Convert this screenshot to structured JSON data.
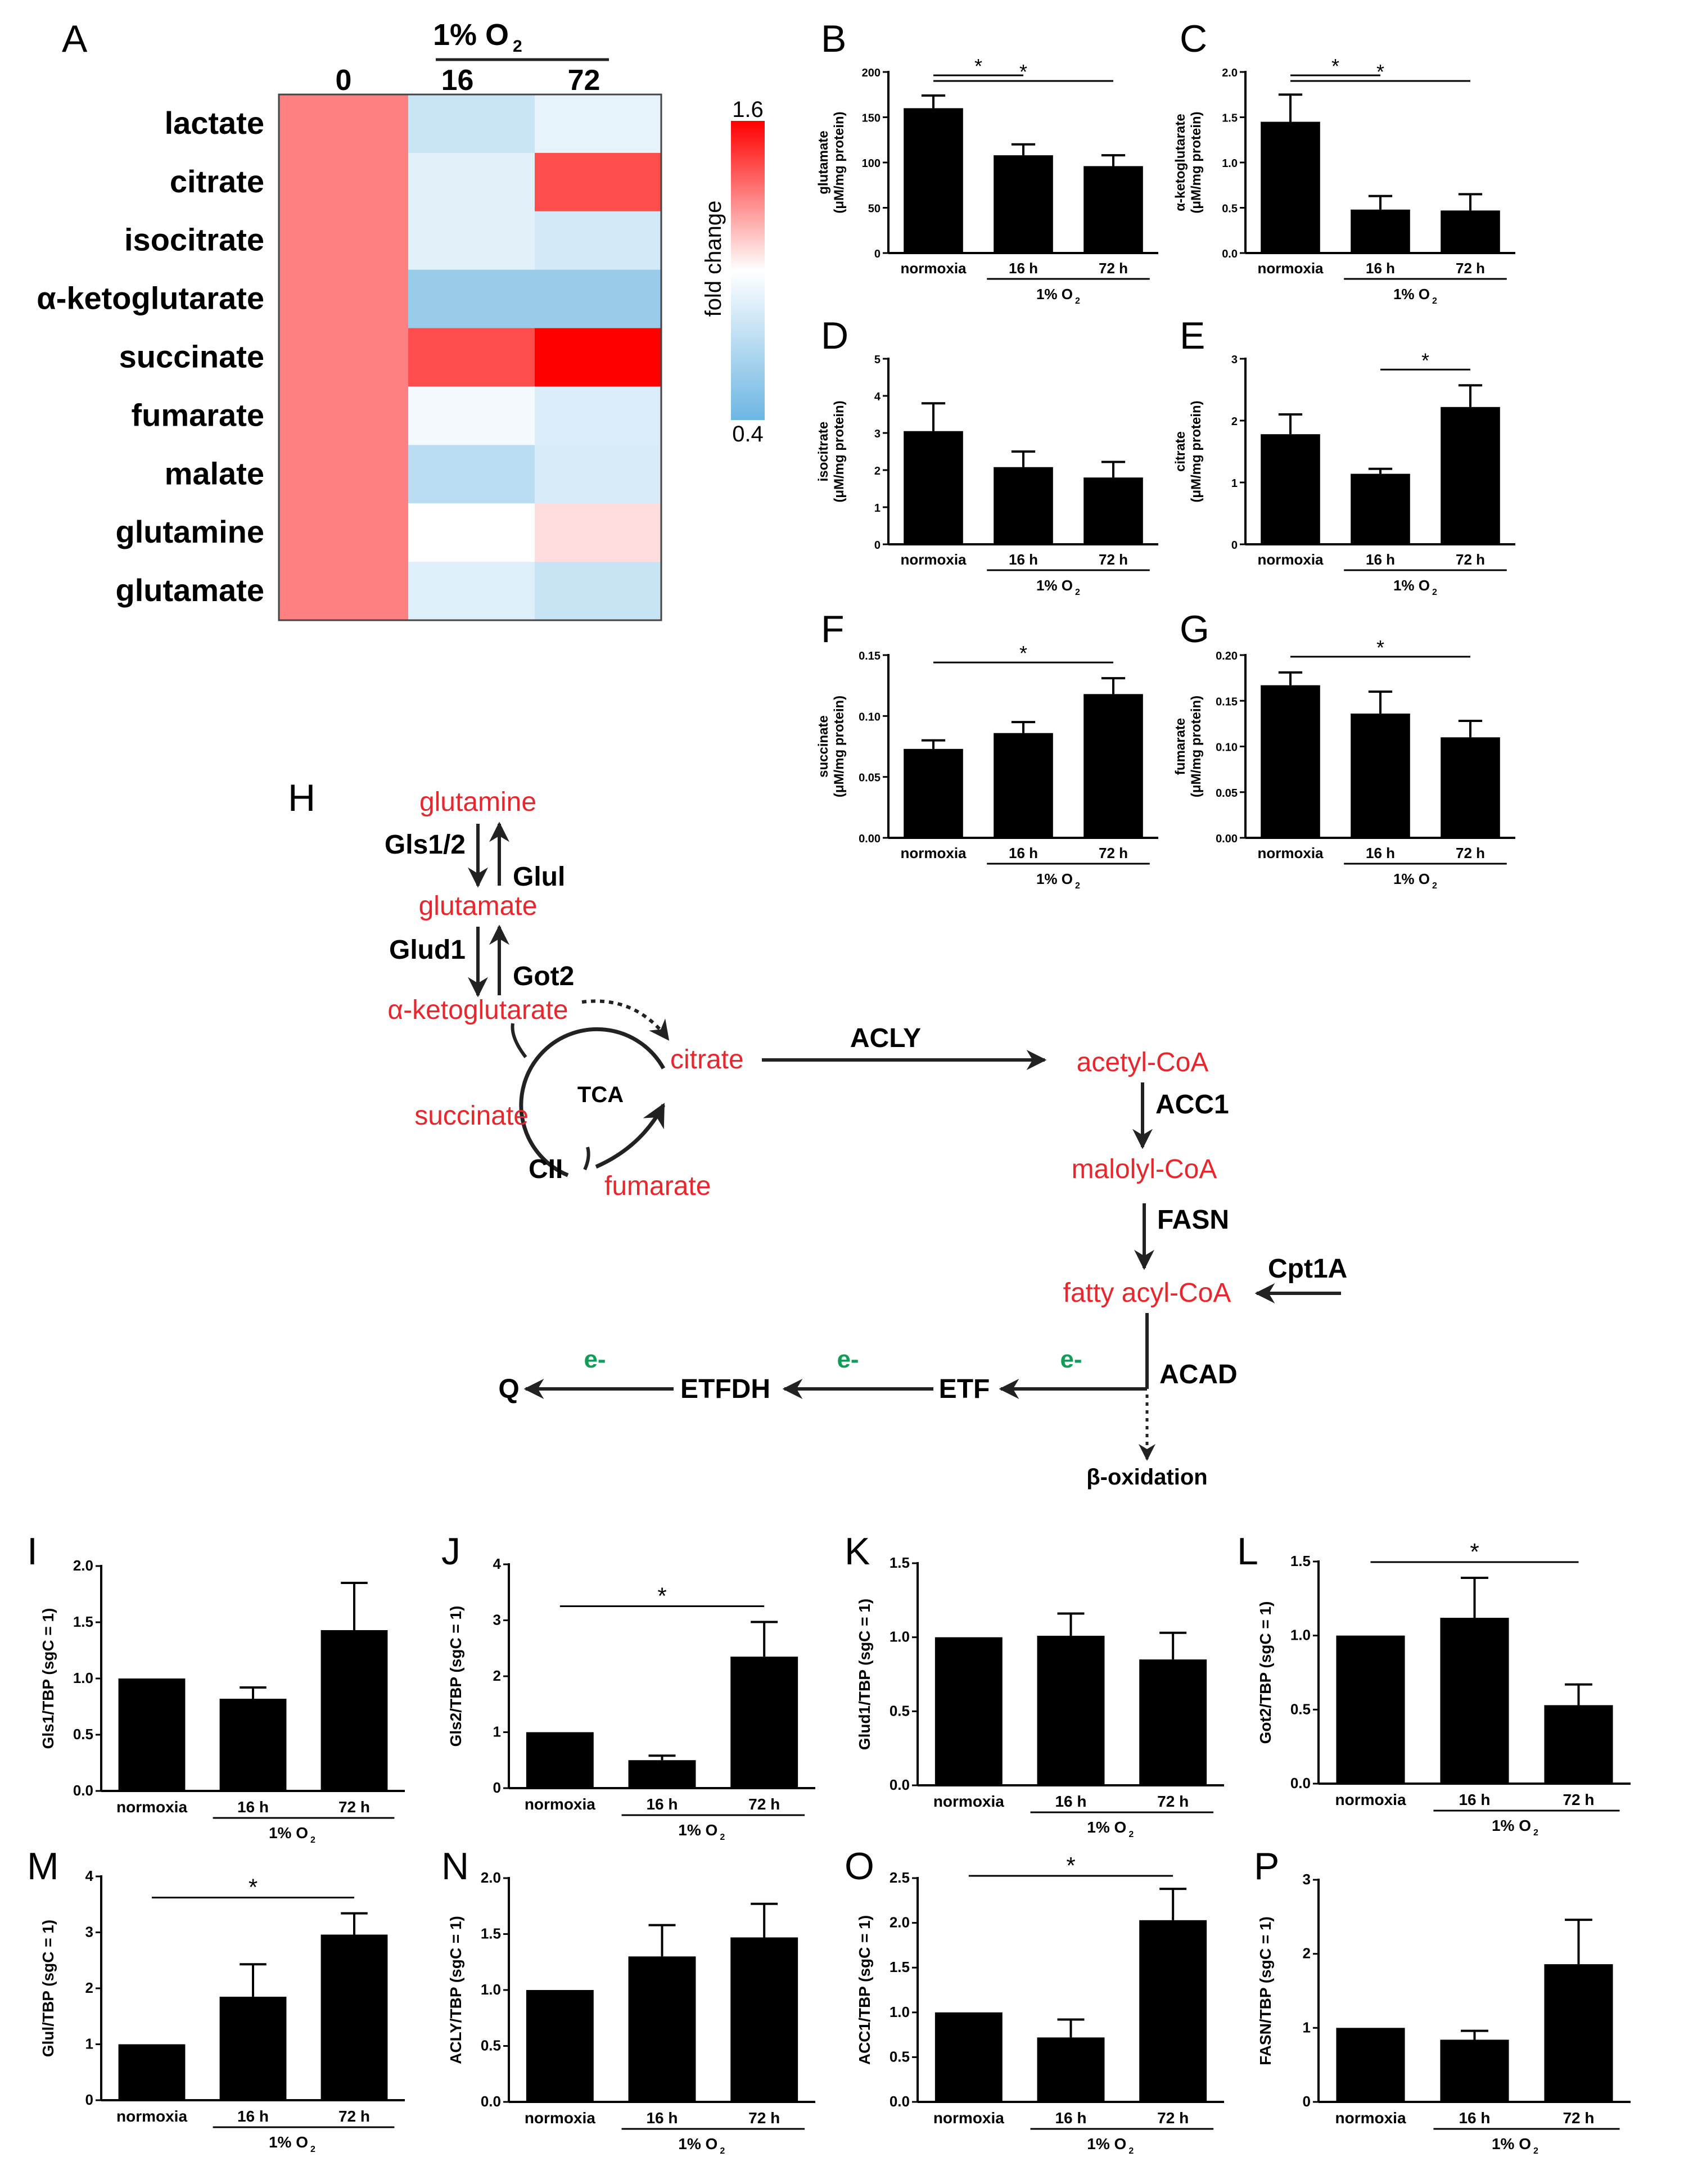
{
  "colors": {
    "bar": "#000000",
    "metabolite": "#e8262b",
    "electron": "#0f9d58",
    "heat_low": "#6db6e3",
    "heat_mid": "#ffffff",
    "heat_high": "#ff0000"
  },
  "panel_letters": {
    "A": "A",
    "B": "B",
    "C": "C",
    "D": "D",
    "E": "E",
    "F": "F",
    "G": "G",
    "H": "H",
    "I": "I",
    "J": "J",
    "K": "K",
    "L": "L",
    "M": "M",
    "N": "N",
    "O": "O",
    "P": "P"
  },
  "chart_data": [
    {
      "type": "heatmap",
      "panel": "A",
      "header_group": "1% O",
      "header_group_sub": "2",
      "columns": [
        "0",
        "16",
        "72"
      ],
      "rows": [
        "lactate",
        "citrate",
        "isocitrate",
        "α-ketoglutarate",
        "succinate",
        "fumarate",
        "malate",
        "glutamine",
        "glutamate"
      ],
      "values": [
        [
          1.3,
          0.78,
          0.9
        ],
        [
          1.3,
          0.88,
          1.42
        ],
        [
          1.3,
          0.88,
          0.82
        ],
        [
          1.3,
          0.58,
          0.58
        ],
        [
          1.3,
          1.42,
          1.6
        ],
        [
          1.3,
          0.95,
          0.85
        ],
        [
          1.3,
          0.72,
          0.84
        ],
        [
          1.3,
          1.0,
          1.08
        ],
        [
          1.3,
          0.87,
          0.77
        ]
      ],
      "colorbar_label": "fold change",
      "colorbar_max": "1.6",
      "colorbar_min": "0.4",
      "range": [
        0.4,
        1.6
      ]
    },
    {
      "type": "bar",
      "panel": "B",
      "categories": [
        "normoxia",
        "16 h",
        "72 h"
      ],
      "values": [
        160,
        108,
        96
      ],
      "errors": [
        14,
        12,
        12
      ],
      "ylabel": "glutamate",
      "ylabel2": "(μM/mg protein)",
      "ylim": [
        0,
        200
      ],
      "yticks": [
        "0",
        "50",
        "100",
        "150",
        "200"
      ],
      "group_label": "1% O",
      "group_label_sub": "2",
      "significance": [
        {
          "from": 0,
          "to": 1,
          "label": "*"
        },
        {
          "from": 0,
          "to": 2,
          "label": "*"
        }
      ]
    },
    {
      "type": "bar",
      "panel": "C",
      "categories": [
        "normoxia",
        "16 h",
        "72 h"
      ],
      "values": [
        1.45,
        0.48,
        0.47
      ],
      "errors": [
        0.3,
        0.15,
        0.18
      ],
      "ylabel": "α-ketoglutarate",
      "ylabel2": "(μM/mg protein)",
      "ylim": [
        0,
        2.0
      ],
      "yticks": [
        "0.0",
        "0.5",
        "1.0",
        "1.5",
        "2.0"
      ],
      "group_label": "1% O",
      "group_label_sub": "2",
      "significance": [
        {
          "from": 0,
          "to": 1,
          "label": "*"
        },
        {
          "from": 0,
          "to": 2,
          "label": "*"
        }
      ]
    },
    {
      "type": "bar",
      "panel": "D",
      "categories": [
        "normoxia",
        "16 h",
        "72 h"
      ],
      "values": [
        3.05,
        2.08,
        1.8
      ],
      "errors": [
        0.75,
        0.42,
        0.42
      ],
      "ylabel": "isocitrate",
      "ylabel2": "(μM/mg protein)",
      "ylim": [
        0,
        5
      ],
      "yticks": [
        "0",
        "1",
        "2",
        "3",
        "4",
        "5"
      ],
      "group_label": "1% O",
      "group_label_sub": "2",
      "significance": []
    },
    {
      "type": "bar",
      "panel": "E",
      "categories": [
        "normoxia",
        "16 h",
        "72 h"
      ],
      "values": [
        1.78,
        1.14,
        2.22
      ],
      "errors": [
        0.32,
        0.08,
        0.35
      ],
      "ylabel": "citrate",
      "ylabel2": "(μM/mg protein)",
      "ylim": [
        0,
        3
      ],
      "yticks": [
        "0",
        "1",
        "2",
        "3"
      ],
      "group_label": "1% O",
      "group_label_sub": "2",
      "significance": [
        {
          "from": 1,
          "to": 2,
          "label": "*"
        }
      ]
    },
    {
      "type": "bar",
      "panel": "F",
      "categories": [
        "normoxia",
        "16 h",
        "72 h"
      ],
      "values": [
        0.073,
        0.086,
        0.118
      ],
      "errors": [
        0.007,
        0.009,
        0.013
      ],
      "ylabel": "succinate",
      "ylabel2": "(μM/mg protein)",
      "ylim": [
        0,
        0.15
      ],
      "yticks": [
        "0.00",
        "0.05",
        "0.10",
        "0.15"
      ],
      "group_label": "1% O",
      "group_label_sub": "2",
      "significance": [
        {
          "from": 0,
          "to": 2,
          "label": "*"
        }
      ]
    },
    {
      "type": "bar",
      "panel": "G",
      "categories": [
        "normoxia",
        "16 h",
        "72 h"
      ],
      "values": [
        0.167,
        0.136,
        0.11
      ],
      "errors": [
        0.014,
        0.024,
        0.018
      ],
      "ylabel": "fumarate",
      "ylabel2": "(μM/mg protein)",
      "ylim": [
        0,
        0.2
      ],
      "yticks": [
        "0.00",
        "0.05",
        "0.10",
        "0.15",
        "0.20"
      ],
      "group_label": "1% O",
      "group_label_sub": "2",
      "significance": [
        {
          "from": 0,
          "to": 2,
          "label": "*"
        }
      ]
    },
    {
      "type": "bar",
      "panel": "I",
      "categories": [
        "normoxia",
        "16 h",
        "72 h"
      ],
      "values": [
        1.0,
        0.82,
        1.43
      ],
      "errors": [
        0,
        0.1,
        0.42
      ],
      "ylabel": "Gls1/TBP (sgC = 1)",
      "ylim": [
        0,
        2.0
      ],
      "yticks": [
        "0.0",
        "0.5",
        "1.0",
        "1.5",
        "2.0"
      ],
      "group_label": "1% O",
      "group_label_sub": "2",
      "significance": []
    },
    {
      "type": "bar",
      "panel": "J",
      "categories": [
        "normoxia",
        "16 h",
        "72 h"
      ],
      "values": [
        1.0,
        0.5,
        2.35
      ],
      "errors": [
        0,
        0.08,
        0.62
      ],
      "ylabel": "Gls2/TBP (sgC = 1)",
      "ylim": [
        0,
        4
      ],
      "yticks": [
        "0",
        "1",
        "2",
        "3",
        "4"
      ],
      "group_label": "1% O",
      "group_label_sub": "2",
      "significance": [
        {
          "from": 0,
          "to": 2,
          "label": "*"
        }
      ]
    },
    {
      "type": "bar",
      "panel": "K",
      "categories": [
        "normoxia",
        "16 h",
        "72 h"
      ],
      "values": [
        1.0,
        1.01,
        0.85
      ],
      "errors": [
        0,
        0.15,
        0.18
      ],
      "ylabel": "Glud1/TBP (sgC = 1)",
      "ylim": [
        0,
        1.5
      ],
      "yticks": [
        "0.0",
        "0.5",
        "1.0",
        "1.5"
      ],
      "group_label": "1% O",
      "group_label_sub": "2",
      "significance": []
    },
    {
      "type": "bar",
      "panel": "L",
      "categories": [
        "normoxia",
        "16 h",
        "72 h"
      ],
      "values": [
        1.0,
        1.12,
        0.53
      ],
      "errors": [
        0,
        0.27,
        0.14
      ],
      "ylabel": "Got2/TBP (sgC = 1)",
      "ylim": [
        0,
        1.5
      ],
      "yticks": [
        "0.0",
        "0.5",
        "1.0",
        "1.5"
      ],
      "group_label": "1% O",
      "group_label_sub": "2",
      "significance": [
        {
          "from": 0,
          "to": 2,
          "label": "*"
        }
      ]
    },
    {
      "type": "bar",
      "panel": "M",
      "categories": [
        "normoxia",
        "16 h",
        "72 h"
      ],
      "values": [
        1.0,
        1.85,
        2.96
      ],
      "errors": [
        0,
        0.58,
        0.38
      ],
      "ylabel": "Glul/TBP (sgC = 1)",
      "ylim": [
        0,
        4
      ],
      "yticks": [
        "0",
        "1",
        "2",
        "3",
        "4"
      ],
      "group_label": "1% O",
      "group_label_sub": "2",
      "significance": [
        {
          "from": 0,
          "to": 2,
          "label": "*"
        }
      ]
    },
    {
      "type": "bar",
      "panel": "N",
      "categories": [
        "normoxia",
        "16 h",
        "72 h"
      ],
      "values": [
        1.0,
        1.3,
        1.47
      ],
      "errors": [
        0,
        0.28,
        0.3
      ],
      "ylabel": "ACLY/TBP (sgC = 1)",
      "ylim": [
        0,
        2.0
      ],
      "yticks": [
        "0.0",
        "0.5",
        "1.0",
        "1.5",
        "2.0"
      ],
      "group_label": "1% O",
      "group_label_sub": "2",
      "significance": []
    },
    {
      "type": "bar",
      "panel": "O",
      "categories": [
        "normoxia",
        "16 h",
        "72 h"
      ],
      "values": [
        1.0,
        0.72,
        2.03
      ],
      "errors": [
        0,
        0.2,
        0.35
      ],
      "ylabel": "ACC1/TBP (sgC = 1)",
      "ylim": [
        0,
        2.5
      ],
      "yticks": [
        "0.0",
        "0.5",
        "1.0",
        "1.5",
        "2.0",
        "2.5"
      ],
      "group_label": "1% O",
      "group_label_sub": "2",
      "significance": [
        {
          "from": 0,
          "to": 2,
          "label": "*"
        }
      ]
    },
    {
      "type": "bar",
      "panel": "P",
      "categories": [
        "normoxia",
        "16 h",
        "72 h"
      ],
      "values": [
        1.0,
        0.84,
        1.86
      ],
      "errors": [
        0,
        0.12,
        0.6
      ],
      "ylabel": "FASN/TBP (sgC = 1)",
      "ylim": [
        0,
        3
      ],
      "yticks": [
        "0",
        "1",
        "2",
        "3"
      ],
      "group_label": "1% O",
      "group_label_sub": "2",
      "significance": []
    }
  ],
  "diagram": {
    "metabolites": {
      "glutamine": "glutamine",
      "glutamate": "glutamate",
      "akg": "α-ketoglutarate",
      "citrate": "citrate",
      "succinate": "succinate",
      "fumarate": "fumarate",
      "acetyl": "acetyl-CoA",
      "malonyl": "malolyl-CoA",
      "fattyacyl": "fatty acyl-CoA"
    },
    "enzymes": {
      "gls": "Gls1/2",
      "glul": "Glul",
      "glud1": "Glud1",
      "got2": "Got2",
      "tca": "TCA",
      "cii": "CII",
      "acly": "ACLY",
      "acc1": "ACC1",
      "fasn": "FASN",
      "cpt1a": "Cpt1A",
      "acad": "ACAD",
      "etf": "ETF",
      "etfdh": "ETFDH",
      "q": "Q",
      "beta": "β-oxidation"
    },
    "electron": "e-"
  }
}
